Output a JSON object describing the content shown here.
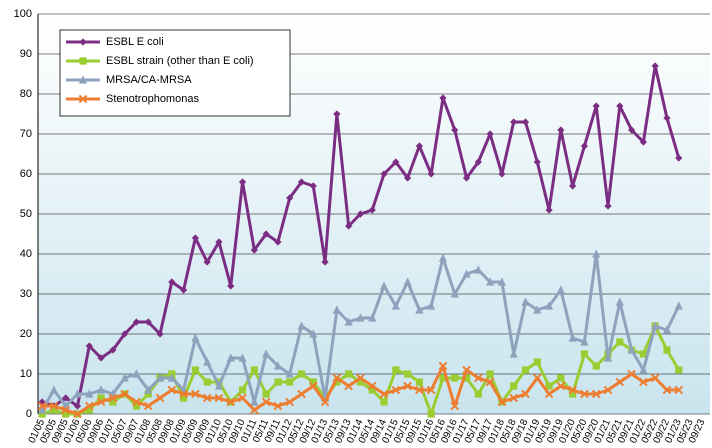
{
  "chart_data": {
    "type": "line",
    "categories": [
      "01/05",
      "05/05",
      "09/05",
      "01/06",
      "05/06",
      "09/06",
      "01/07",
      "05/07",
      "09/07",
      "01/08",
      "05/08",
      "09/08",
      "01/09",
      "05/09",
      "09/09",
      "01/10",
      "05/10",
      "09/10",
      "01/11",
      "05/11",
      "09/11",
      "01/12",
      "05/12",
      "09/12",
      "01/13",
      "05/13",
      "09/13",
      "01/14",
      "05/14",
      "09/14",
      "01/15",
      "05/15",
      "09/15",
      "01/16",
      "05/16",
      "09/16",
      "01/17",
      "05/17",
      "09/17",
      "01/18",
      "05/18",
      "09/18",
      "01/19",
      "05/19",
      "09/19",
      "01/20",
      "05/20",
      "09/20",
      "01/21",
      "05/21",
      "09/21",
      "01/22",
      "05/22",
      "09/22",
      "01/23",
      "05/23",
      "09/23"
    ],
    "series": [
      {
        "name": "ESBL E coli",
        "color": "#7b2c83",
        "marker": "diamond",
        "values": [
          3,
          2,
          4,
          2,
          17,
          14,
          16,
          20,
          23,
          23,
          20,
          33,
          31,
          44,
          38,
          43,
          32,
          58,
          41,
          45,
          43,
          54,
          58,
          57,
          38,
          75,
          47,
          50,
          51,
          60,
          63,
          59,
          67,
          60,
          79,
          71,
          59,
          63,
          70,
          60,
          73,
          73,
          63,
          51,
          71,
          57,
          67,
          77,
          52,
          77,
          71,
          68,
          87,
          74,
          64,
          null,
          null
        ]
      },
      {
        "name": "ESBL strain (other than E coli)",
        "color": "#9acd32",
        "marker": "square",
        "values": [
          0,
          1,
          0,
          0,
          1,
          4,
          3,
          5,
          2,
          5,
          9,
          10,
          4,
          11,
          8,
          8,
          3,
          6,
          11,
          5,
          8,
          8,
          10,
          8,
          4,
          8,
          10,
          8,
          6,
          3,
          11,
          10,
          8,
          0,
          9,
          9,
          9,
          5,
          10,
          3,
          7,
          11,
          13,
          7,
          9,
          5,
          15,
          12,
          15,
          18,
          16,
          15,
          22,
          16,
          11,
          null,
          null
        ]
      },
      {
        "name": "MRSA/CA-MRSA",
        "color": "#8ea2bd",
        "marker": "triangle",
        "values": [
          1,
          6,
          2,
          5,
          5,
          6,
          5,
          9,
          10,
          6,
          9,
          9,
          6,
          19,
          13,
          7,
          14,
          14,
          3,
          15,
          12,
          10,
          22,
          20,
          4,
          26,
          23,
          24,
          24,
          32,
          27,
          33,
          26,
          27,
          39,
          30,
          35,
          36,
          33,
          33,
          15,
          28,
          26,
          27,
          31,
          19,
          18,
          40,
          14,
          28,
          16,
          11,
          22,
          21,
          27,
          null,
          null
        ]
      },
      {
        "name": "Stenotrophomonas",
        "color": "#ed7d31",
        "marker": "x",
        "values": [
          2,
          2,
          1,
          0,
          2,
          3,
          4,
          5,
          3,
          2,
          4,
          6,
          5,
          5,
          4,
          4,
          3,
          4,
          1,
          3,
          2,
          3,
          5,
          7,
          3,
          9,
          7,
          9,
          7,
          5,
          6,
          7,
          6,
          6,
          12,
          2,
          11,
          9,
          8,
          3,
          4,
          5,
          9,
          5,
          7,
          6,
          5,
          5,
          6,
          8,
          10,
          8,
          9,
          6,
          6,
          null,
          null
        ]
      }
    ],
    "ylim": [
      0,
      100
    ],
    "yticks": [
      0,
      10,
      20,
      30,
      40,
      50,
      60,
      70,
      80,
      90,
      100
    ],
    "grid": true
  }
}
